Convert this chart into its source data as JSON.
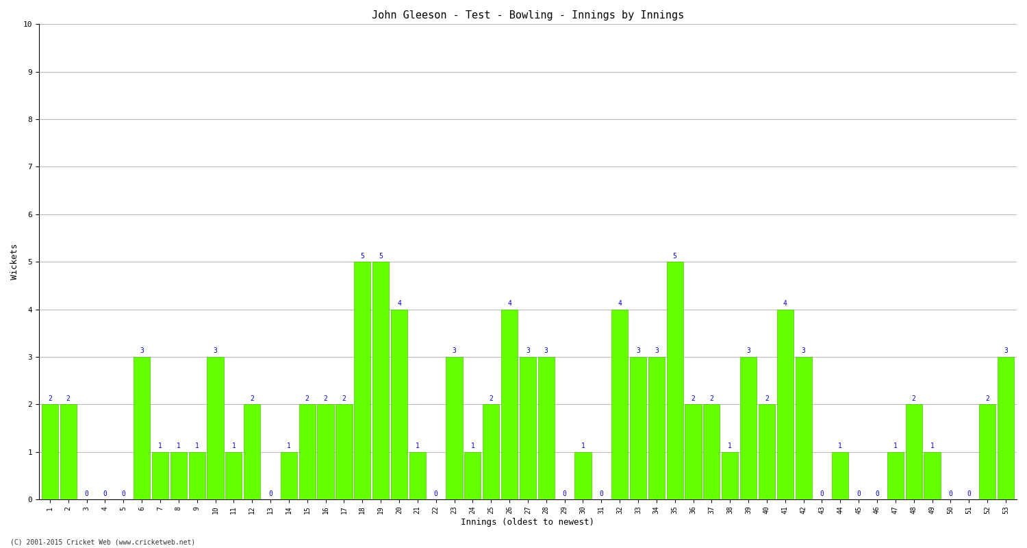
{
  "title": "John Gleeson - Test - Bowling - Innings by Innings",
  "xlabel": "Innings (oldest to newest)",
  "ylabel": "Wickets",
  "ylim": [
    0,
    10
  ],
  "background_color": "#ffffff",
  "bar_color": "#66ff00",
  "bar_edge_color": "#44cc00",
  "label_color": "#0000cc",
  "grid_color": "#bbbbbb",
  "innings": [
    1,
    2,
    3,
    4,
    5,
    6,
    7,
    8,
    9,
    10,
    11,
    12,
    13,
    14,
    15,
    16,
    17,
    18,
    19,
    20,
    21,
    22,
    23,
    24,
    25,
    26,
    27,
    28,
    29,
    30,
    31,
    32,
    33,
    34,
    35,
    36,
    37,
    38,
    39,
    40,
    41,
    42,
    43,
    44,
    45,
    46,
    47,
    48,
    49,
    50,
    51,
    52,
    53
  ],
  "wickets": [
    2,
    2,
    0,
    0,
    0,
    3,
    1,
    1,
    1,
    3,
    1,
    2,
    0,
    1,
    2,
    2,
    2,
    5,
    5,
    4,
    1,
    0,
    3,
    1,
    2,
    4,
    3,
    3,
    0,
    1,
    0,
    4,
    3,
    3,
    5,
    2,
    2,
    1,
    3,
    2,
    4,
    3,
    0,
    1,
    0,
    0,
    1,
    2,
    1,
    0,
    0,
    2,
    3
  ],
  "title_fontsize": 11,
  "tick_fontsize": 7,
  "label_fontsize": 9,
  "annotation_fontsize": 7,
  "footnote": "(C) 2001-2015 Cricket Web (www.cricketweb.net)"
}
